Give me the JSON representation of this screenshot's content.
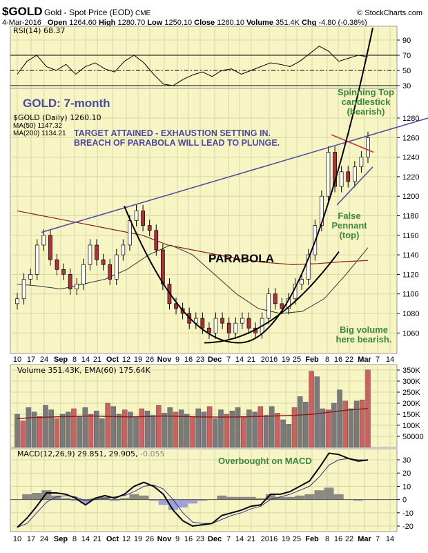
{
  "header": {
    "symbol": "$GOLD",
    "name": "Gold - Spot Price (EOD)",
    "exchange": "CME",
    "copyright": "© StockCharts.com",
    "date": "4-Mar-2016",
    "open_label": "Open",
    "open": "1264.60",
    "high_label": "High",
    "high": "1280.70",
    "low_label": "Low",
    "low": "1250.10",
    "close_label": "Close",
    "close": "1260.10",
    "volume_label": "Volume",
    "volume": "351.4K",
    "chg_label": "Chg",
    "chg": "-4.80 (-0.38%)"
  },
  "legends": {
    "rsi": "RSI(14) 68.37",
    "price": "$GOLD (Daily) 1260.10",
    "ma50": "MA(50) 1147.32",
    "ma200": "MA(200) 1134.21",
    "volume": "Volume 351.43K, EMA(60) 175.64K",
    "macd_main": "MACD(12,26,9) 29.851, 29.905,",
    "macd_hist": "-0.055"
  },
  "annotations": {
    "title": "GOLD: 7-month",
    "target1": "TARGET ATTAINED - EXHAUSTION SETTING IN.",
    "target2": "BREACH OF PARABOLA WILL LEAD TO PLUNGE.",
    "parabola": "PARABOLA",
    "spin1": "Spinning Top",
    "spin2": "candlestick",
    "spin3": "(bearish)",
    "pen1": "False",
    "pen2": "Pennant",
    "pen3": "(top)",
    "vol1": "Big volume",
    "vol2": "here bearish.",
    "macd": "Overbought on MACD"
  },
  "colors": {
    "panel": "#f7f5c4",
    "up": "#ffffff",
    "down": "#b0303a",
    "vol_up": "#7a7a7a",
    "vol_down": "#d06060",
    "ma200": "#8b2020",
    "trend": "#5050a8",
    "annotation_blue": "#4a4aa0",
    "annotation_green": "#3a8a3a",
    "hist_neg": "#9090d8"
  },
  "chart_data": [
    {
      "type": "line",
      "panel": "RSI",
      "yticks": [
        90,
        70,
        50,
        30
      ],
      "values": [
        45,
        62,
        70,
        55,
        50,
        58,
        45,
        55,
        60,
        52,
        48,
        62,
        70,
        60,
        45,
        32,
        30,
        38,
        44,
        48,
        42,
        50,
        52,
        45,
        50,
        55,
        60,
        58,
        55,
        62,
        72,
        82,
        75,
        62,
        66,
        70,
        68
      ]
    },
    {
      "type": "candlestick",
      "panel": "price",
      "yticks": [
        1280,
        1260,
        1240,
        1220,
        1200,
        1180,
        1160,
        1140,
        1120,
        1100,
        1080,
        1060
      ],
      "ylim": [
        1045,
        1290
      ],
      "closes": [
        1095,
        1115,
        1120,
        1150,
        1160,
        1135,
        1125,
        1120,
        1105,
        1110,
        1130,
        1150,
        1135,
        1130,
        1115,
        1140,
        1150,
        1175,
        1185,
        1170,
        1165,
        1145,
        1110,
        1090,
        1085,
        1080,
        1070,
        1075,
        1065,
        1060,
        1075,
        1070,
        1060,
        1070,
        1075,
        1065,
        1060,
        1075,
        1100,
        1090,
        1085,
        1095,
        1110,
        1115,
        1140,
        1170,
        1200,
        1245,
        1210,
        1225,
        1215,
        1230,
        1240,
        1260
      ],
      "ma50": [
        1110,
        1108,
        1105,
        1110,
        1115,
        1125,
        1140,
        1150,
        1140,
        1120,
        1100,
        1085,
        1080,
        1082,
        1095,
        1120,
        1147.32
      ],
      "ma200": [
        1185,
        1180,
        1175,
        1170,
        1165,
        1160,
        1150,
        1145,
        1140,
        1135,
        1132,
        1130,
        1131,
        1133,
        1134.21
      ],
      "xticks": [
        "10",
        "17",
        "24",
        "Sep",
        "8",
        "14",
        "21",
        "Oct",
        "12",
        "19",
        "26",
        "Nov",
        "9",
        "16",
        "23",
        "Dec",
        "7",
        "14",
        "21",
        "2016",
        "19",
        "25",
        "Feb",
        "8",
        "16",
        "22",
        "Mar",
        "7",
        "14"
      ]
    },
    {
      "type": "bar",
      "panel": "volume",
      "yticks": [
        "350K",
        "300K",
        "250K",
        "200K",
        "150K",
        "100K",
        "50000"
      ],
      "values": [
        150,
        120,
        180,
        160,
        140,
        190,
        170,
        130,
        150,
        160,
        175,
        140,
        180,
        150,
        165,
        130,
        200,
        185,
        150,
        170,
        160,
        140,
        175,
        165,
        145,
        190,
        155,
        180,
        160,
        170,
        150,
        140,
        175,
        160,
        185,
        130,
        170,
        150,
        165,
        180,
        140,
        170,
        160,
        185,
        145,
        185,
        155,
        125,
        105,
        180,
        230,
        205,
        345,
        320,
        175,
        170,
        200,
        260,
        210,
        175,
        210,
        215,
        351
      ],
      "ema60": [
        130,
        135,
        138,
        140,
        142,
        140,
        138,
        140,
        142,
        140,
        138,
        137,
        138,
        140,
        142,
        145,
        150,
        160,
        170,
        175.64
      ]
    },
    {
      "type": "line",
      "panel": "MACD",
      "yticks": [
        30,
        20,
        10,
        0,
        -10,
        -20
      ],
      "macd": [
        -21,
        -14,
        -5,
        5,
        5,
        4,
        1,
        -4,
        1,
        3,
        1,
        4,
        10,
        13,
        10,
        4,
        -8,
        -16,
        -20,
        -19,
        -18,
        -12,
        -10,
        -8,
        -5,
        -4,
        4,
        4,
        6,
        10,
        14,
        24,
        35,
        34,
        31,
        29,
        29.851
      ],
      "signal": [
        -21,
        -18,
        -10,
        -2,
        2,
        3,
        2,
        -1,
        0,
        1,
        2,
        3,
        6,
        10,
        11,
        8,
        0,
        -10,
        -17,
        -18,
        -18,
        -15,
        -12,
        -10,
        -7,
        -5,
        0,
        2,
        4,
        7,
        10,
        17,
        26,
        30,
        31,
        30,
        29.905
      ],
      "histogram": [
        0,
        4,
        5,
        7,
        3,
        1,
        -1,
        -3,
        1,
        2,
        -1,
        1,
        4,
        3,
        -1,
        -4,
        -8,
        -6,
        -3,
        -1,
        0,
        3,
        2,
        2,
        2,
        1,
        4,
        2,
        2,
        3,
        4,
        7,
        9,
        4,
        0,
        -1,
        -0.055
      ]
    }
  ]
}
